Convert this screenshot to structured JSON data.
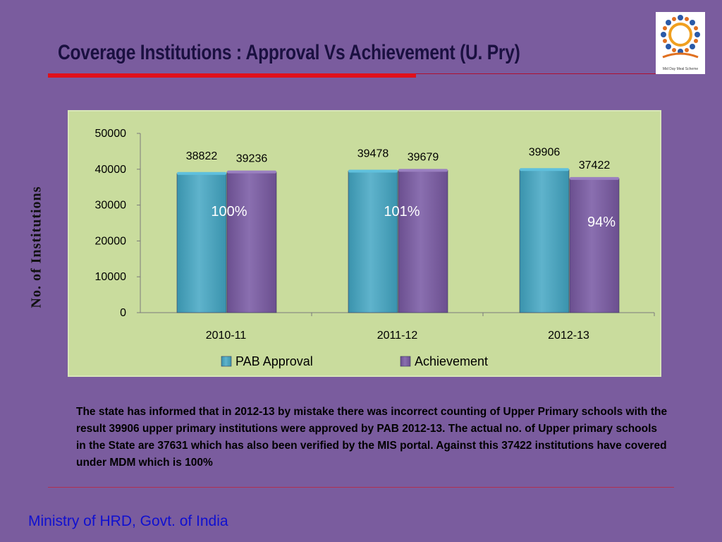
{
  "slide": {
    "title": "Coverage Institutions : Approval Vs Achievement (U. Pry)",
    "y_axis_label": "No. of Institutions",
    "note": "The state has informed that in 2012-13 by mistake there was incorrect counting of Upper Primary schools with the result 39906 upper primary institutions were approved by PAB 2012-13. The actual no. of Upper primary schools in the State are 37631 which has also been verified by the MIS portal. Against this 37422 institutions have covered under MDM which is 100%",
    "footer": "Ministry of HRD, Govt. of India",
    "logo": {
      "text": "Mid Day Meal Scheme",
      "icon": "mid-day-meal-logo"
    }
  },
  "colors": {
    "background": "#7a5c9e",
    "plot_area": "#c9dc9d",
    "pab_approval": "#3a93ad",
    "achievement": "#6b4f8f",
    "title": "#1a1040",
    "footer": "#1010d0",
    "accent_rule": "#e0101a"
  },
  "chart_data": {
    "type": "bar",
    "categories": [
      "2010-11",
      "2011-12",
      "2012-13"
    ],
    "series": [
      {
        "name": "PAB Approval",
        "values": [
          38822,
          39478,
          39906
        ],
        "labels": [
          "38822",
          "39478",
          "39906"
        ]
      },
      {
        "name": "Achievement",
        "values": [
          39236,
          39679,
          37422
        ],
        "labels": [
          "39236",
          "39679",
          "37422"
        ]
      }
    ],
    "annotations": [
      "100%",
      "101%",
      "94%"
    ],
    "y_ticks": [
      "0",
      "10000",
      "20000",
      "30000",
      "40000",
      "50000"
    ],
    "ylim": [
      0,
      50000
    ],
    "ylabel": "No. of Institutions",
    "legend_position": "bottom",
    "grid": false
  }
}
